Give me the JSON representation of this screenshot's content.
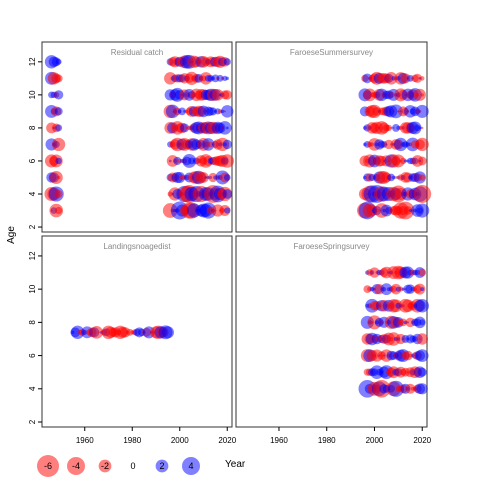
{
  "chart_data": {
    "type": "scatter",
    "encoding": "bubble: x = Year, y = Age, fill colour = sign of residual, circle area = residual magnitude",
    "ylabel": "Age",
    "xlabel": "Year",
    "x_ticks": [
      1960,
      1980,
      2000,
      2020
    ],
    "y_ticks": [
      2,
      4,
      6,
      8,
      10,
      12
    ],
    "xlim": [
      1942,
      2022
    ],
    "ylim": [
      1.7,
      13.2
    ],
    "colors": {
      "positive": "#0000ff",
      "negative": "#ff0000",
      "alpha": 0.5
    },
    "legend": {
      "position": "bottom",
      "values": [
        -6,
        -4,
        -2,
        0,
        2,
        4
      ],
      "labels": [
        "-6",
        "-4",
        "-2",
        "0",
        "2",
        "4"
      ],
      "title": "Year"
    },
    "panels": [
      {
        "title": "Residual catch",
        "groups": [
          {
            "years": [
              1946,
              1949
            ],
            "ages": [
              3,
              4,
              5,
              6,
              7,
              8,
              9,
              10,
              11,
              12
            ]
          },
          {
            "years": [
              1996,
              2020
            ],
            "ages": [
              3,
              4,
              5,
              6,
              7,
              8,
              9,
              10,
              11,
              12
            ]
          }
        ]
      },
      {
        "title": "FaroeseSummersurvey",
        "groups": [
          {
            "years": [
              1996,
              2020
            ],
            "ages": [
              3,
              4,
              5,
              6,
              7,
              8,
              9,
              10,
              11
            ]
          }
        ]
      },
      {
        "title": "Landingsnoagedist",
        "groups": [
          {
            "years": [
              1955,
              1995
            ],
            "ages": [
              7.4
            ]
          }
        ]
      },
      {
        "title": "FaroeseSpringsurvey",
        "groups": [
          {
            "years": [
              1997,
              2020
            ],
            "ages": [
              4,
              5,
              6,
              7,
              8,
              9,
              10,
              11
            ]
          }
        ]
      }
    ]
  }
}
